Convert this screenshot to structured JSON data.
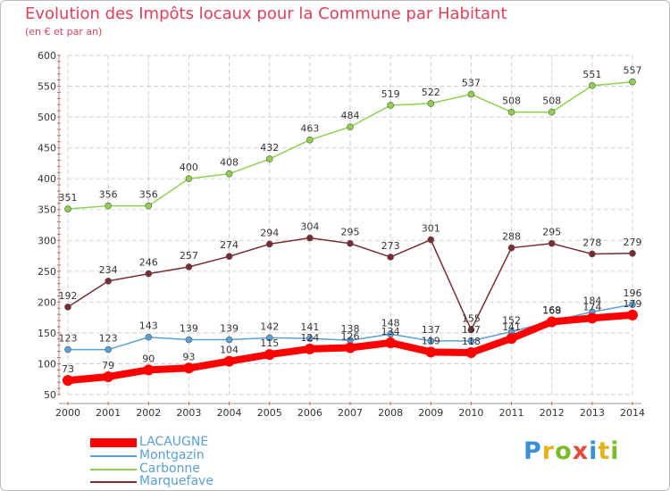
{
  "header": {
    "title": "Evolution des Impôts locaux pour la Commune par Habitant",
    "subtitle": "(en € et par an)"
  },
  "logo": {
    "text": "Proxiti",
    "colors": [
      "#3a8fd6",
      "#e8b21a",
      "#7dbb2a",
      "#e34b3c",
      "#3a8fd6",
      "#e8b21a",
      "#7dbb2a"
    ]
  },
  "chart_data": {
    "type": "line",
    "title": "Evolution des Impôts locaux pour la Commune par Habitant",
    "subtitle": "(en € et par an)",
    "xlabel": "",
    "ylabel": "",
    "ylim": [
      50,
      600
    ],
    "yticks": [
      50,
      100,
      150,
      200,
      250,
      300,
      350,
      400,
      450,
      500,
      550,
      600
    ],
    "grid": true,
    "categories": [
      "2000",
      "2001",
      "2002",
      "2003",
      "2004",
      "2005",
      "2006",
      "2007",
      "2008",
      "2009",
      "2010",
      "2011",
      "2012",
      "2013",
      "2014"
    ],
    "series": [
      {
        "name": "Carbonne",
        "color": "#8fd14f",
        "values": [
          351,
          356,
          356,
          400,
          408,
          432,
          463,
          484,
          519,
          522,
          537,
          508,
          508,
          551,
          557
        ],
        "labels": [
          "351",
          "356",
          "356",
          "400",
          "408",
          "432",
          "463",
          "484",
          "519",
          "522",
          "537",
          "508",
          "508",
          "551",
          "557"
        ]
      },
      {
        "name": "Marquefave",
        "color": "#7b2b34",
        "values": [
          192,
          234,
          246,
          257,
          274,
          294,
          304,
          295,
          273,
          301,
          155,
          288,
          295,
          278,
          279
        ],
        "labels": [
          "192",
          "234",
          "246",
          "257",
          "274",
          "294",
          "304",
          "295",
          "273",
          "301",
          "155",
          "288",
          "295",
          "278",
          "279"
        ]
      },
      {
        "name": "Montgazin",
        "color": "#5aa0d8",
        "values": [
          123,
          123,
          143,
          139,
          139,
          142,
          141,
          138,
          148,
          137,
          137,
          152,
          169,
          184,
          196
        ],
        "labels": [
          "123",
          "123",
          "143",
          "139",
          "139",
          "142",
          "141",
          "138",
          "148",
          "137",
          "137",
          "152",
          "169",
          "184",
          "196"
        ]
      },
      {
        "name": "LACAUGNE",
        "color": "#ff0000",
        "values": [
          73,
          79,
          90,
          93,
          104,
          115,
          124,
          126,
          134,
          119,
          118,
          141,
          168,
          174,
          179
        ],
        "labels": [
          "73",
          "79",
          "90",
          "93",
          "104",
          "115",
          "124",
          "126",
          "134",
          "119",
          "118",
          "141",
          "168",
          "174",
          "179"
        ]
      }
    ],
    "legend": {
      "position": "bottom-left",
      "entries": [
        {
          "name": "LACAUGNE",
          "color": "#ff0000"
        },
        {
          "name": "Montgazin",
          "color": "#5aa0d8"
        },
        {
          "name": "Carbonne",
          "color": "#8fd14f"
        },
        {
          "name": "Marquefave",
          "color": "#7b2b34"
        }
      ]
    }
  }
}
